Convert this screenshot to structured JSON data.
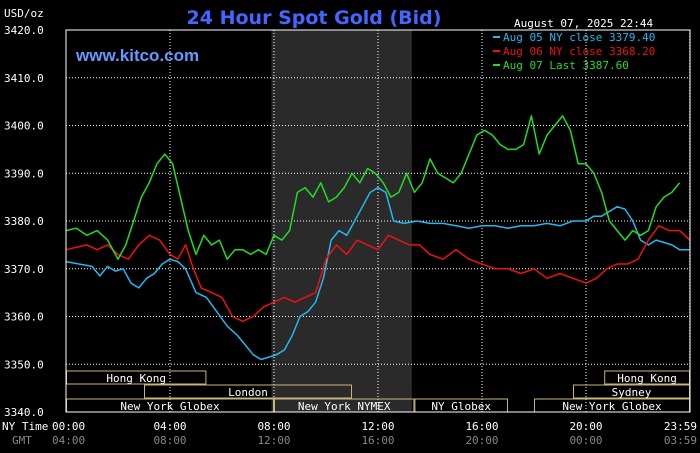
{
  "header": {
    "unit": "USD/oz",
    "title": "24 Hour Spot Gold (Bid)",
    "datetime": "August 07, 2025 22:44",
    "watermark": "www.kitco.com"
  },
  "colors": {
    "background": "#000000",
    "grid": "#ffffff",
    "title": "#4466ff",
    "watermark": "#6699ff",
    "session_band": "#2a2a2a",
    "market_box": "#c8b478",
    "series": [
      "#22b8f0",
      "#ee1111",
      "#22dd22"
    ]
  },
  "chart_data": {
    "type": "line",
    "title": "24 Hour Spot Gold (Bid)",
    "ylabel": "USD/oz",
    "ylim": [
      3340,
      3420
    ],
    "xlim": [
      0,
      24
    ],
    "yticks": [
      "3420.0",
      "3410.0",
      "3400.0",
      "3390.0",
      "3380.0",
      "3370.0",
      "3360.0",
      "3350.0",
      "3340.0"
    ],
    "xticks_ny": [
      "00:00",
      "04:00",
      "08:00",
      "12:00",
      "16:00",
      "20:00",
      "23:59"
    ],
    "xticks_gmt": [
      "04:00",
      "08:00",
      "12:00",
      "16:00",
      "20:00",
      "00:00",
      "03:59"
    ],
    "xrow_labels": [
      "NY Time",
      "GMT"
    ],
    "grid": true,
    "legend_position": "top-right",
    "session_shade": [
      7.9,
      13.3
    ],
    "series": [
      {
        "name": "Aug 05 NY close 3379.40",
        "x": [
          0,
          0.5,
          1,
          1.3,
          1.6,
          1.9,
          2.2,
          2.5,
          2.8,
          3.1,
          3.4,
          3.7,
          4,
          4.3,
          4.6,
          5,
          5.4,
          5.8,
          6.2,
          6.6,
          6.9,
          7.2,
          7.5,
          7.8,
          8.1,
          8.4,
          8.7,
          9,
          9.3,
          9.6,
          9.9,
          10.2,
          10.5,
          10.8,
          11.1,
          11.4,
          11.7,
          12,
          12.3,
          12.6,
          13,
          13.5,
          14,
          14.5,
          15,
          15.5,
          16,
          16.5,
          17,
          17.5,
          18,
          18.5,
          19,
          19.5,
          20,
          20.3,
          20.6,
          20.9,
          21.2,
          21.5,
          21.8,
          22.1,
          22.4,
          22.7,
          23,
          23.3,
          23.6,
          23.99
        ],
        "y": [
          3371.5,
          3371,
          3370.5,
          3368.5,
          3370.5,
          3369.5,
          3370,
          3367,
          3366,
          3368,
          3369,
          3371,
          3372,
          3371.5,
          3370,
          3365,
          3364,
          3361,
          3358,
          3356,
          3354,
          3352,
          3351,
          3351.5,
          3352,
          3353,
          3356,
          3360,
          3361,
          3363,
          3368,
          3376,
          3378,
          3377,
          3380,
          3383,
          3386,
          3387,
          3386,
          3380,
          3379.5,
          3380,
          3379.5,
          3379.5,
          3379,
          3378.5,
          3379,
          3379,
          3378.5,
          3379,
          3379,
          3379.5,
          3379,
          3380,
          3380,
          3381,
          3381,
          3382,
          3383,
          3382.5,
          3380,
          3376,
          3375,
          3376,
          3375.5,
          3375,
          3374,
          3374
        ]
      },
      {
        "name": "Aug 06 NY close 3368.20",
        "x": [
          0,
          0.4,
          0.8,
          1.2,
          1.6,
          2,
          2.4,
          2.8,
          3.2,
          3.6,
          4,
          4.3,
          4.6,
          4.9,
          5.2,
          5.6,
          6,
          6.4,
          6.8,
          7.2,
          7.6,
          8,
          8.4,
          8.8,
          9.2,
          9.6,
          10,
          10.4,
          10.8,
          11.2,
          11.6,
          12,
          12.4,
          12.8,
          13.2,
          13.6,
          14,
          14.5,
          15,
          15.5,
          16,
          16.5,
          17,
          17.5,
          18,
          18.5,
          19,
          19.5,
          20,
          20.4,
          20.8,
          21.2,
          21.6,
          22,
          22.4,
          22.8,
          23.2,
          23.6,
          23.99
        ],
        "y": [
          3374,
          3374.5,
          3375,
          3374,
          3375,
          3373,
          3372,
          3375,
          3377,
          3376,
          3373,
          3372,
          3375,
          3370,
          3366,
          3365,
          3364,
          3360,
          3359,
          3360,
          3362,
          3363,
          3364,
          3363,
          3364,
          3365,
          3372,
          3375,
          3373,
          3376,
          3375,
          3374,
          3377,
          3376,
          3375,
          3375,
          3373,
          3372,
          3374,
          3372,
          3371,
          3370,
          3370,
          3369,
          3370,
          3368,
          3369,
          3368,
          3367,
          3368,
          3370,
          3371,
          3371,
          3372,
          3376,
          3379,
          3378,
          3378,
          3376
        ]
      },
      {
        "name": "Aug 07 Last 3387.60",
        "x": [
          0,
          0.4,
          0.8,
          1.2,
          1.6,
          2,
          2.3,
          2.6,
          2.9,
          3.2,
          3.5,
          3.8,
          4.1,
          4.4,
          4.7,
          5,
          5.3,
          5.6,
          5.9,
          6.2,
          6.5,
          6.8,
          7.1,
          7.4,
          7.7,
          8,
          8.3,
          8.6,
          8.9,
          9.2,
          9.5,
          9.8,
          10.1,
          10.4,
          10.7,
          11,
          11.3,
          11.6,
          11.9,
          12.2,
          12.5,
          12.8,
          13.1,
          13.4,
          13.7,
          14,
          14.3,
          14.6,
          14.9,
          15.2,
          15.5,
          15.8,
          16.1,
          16.4,
          16.7,
          17,
          17.3,
          17.6,
          17.9,
          18.2,
          18.5,
          18.8,
          19.1,
          19.4,
          19.7,
          20,
          20.3,
          20.6,
          20.9,
          21.2,
          21.5,
          21.8,
          22.1,
          22.4,
          22.7,
          23,
          23.3,
          23.6
        ],
        "y": [
          3378,
          3378.5,
          3377,
          3378,
          3376,
          3372,
          3375,
          3380,
          3385,
          3388,
          3392,
          3394,
          3392,
          3385,
          3378,
          3373,
          3377,
          3375,
          3376,
          3372,
          3374,
          3374,
          3373,
          3374,
          3373,
          3377,
          3376,
          3378,
          3386,
          3387,
          3385,
          3388,
          3384,
          3385,
          3387,
          3390,
          3388,
          3391,
          3390,
          3388,
          3385,
          3386,
          3390,
          3386,
          3388,
          3393,
          3390,
          3389,
          3388,
          3390,
          3394,
          3398,
          3399,
          3398,
          3396,
          3395,
          3395,
          3396,
          3402,
          3394,
          3398,
          3400,
          3402,
          3399,
          3392,
          3392,
          3390,
          3386,
          3380,
          3378,
          3376,
          3378,
          3377,
          3378,
          3383,
          3385,
          3386,
          3388
        ]
      }
    ]
  },
  "markets": {
    "rows": [
      [
        {
          "label": "Hong Kong",
          "start": 0,
          "end": 5.4
        },
        {
          "label": "Hong Kong",
          "start": 20.7,
          "end": 24
        }
      ],
      [
        {
          "label": "London",
          "start": 3,
          "end": 11
        },
        {
          "label": "Sydney",
          "start": 19.5,
          "end": 24
        }
      ],
      [
        {
          "label": "New York Globex",
          "start": 0,
          "end": 8
        },
        {
          "label": "New York NYMEX",
          "start": 8,
          "end": 13.4
        },
        {
          "label": "NY Globex",
          "start": 13.4,
          "end": 17
        },
        {
          "label": "New York Globex",
          "start": 18,
          "end": 24
        }
      ]
    ]
  }
}
